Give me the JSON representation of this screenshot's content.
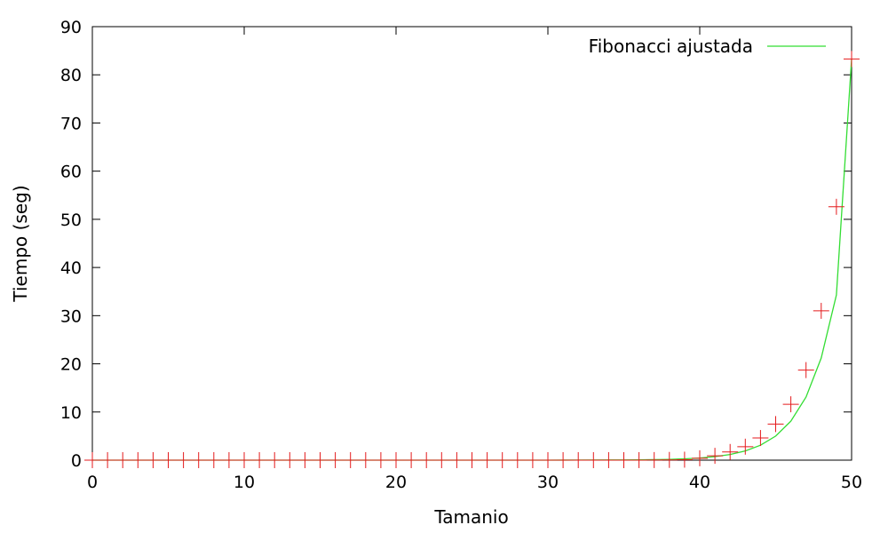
{
  "chart_data": {
    "type": "scatter",
    "title": "",
    "xlabel": "Tamanio",
    "ylabel": "Tiempo (seg)",
    "xlim": [
      0,
      50
    ],
    "ylim": [
      0,
      90
    ],
    "xticks": [
      0,
      10,
      20,
      30,
      40,
      50
    ],
    "yticks": [
      0,
      10,
      20,
      30,
      40,
      50,
      60,
      70,
      80,
      90
    ],
    "grid": false,
    "legend_position": "top-right",
    "series": [
      {
        "name": "",
        "kind": "points",
        "marker": "plus",
        "color": "#e41a1c",
        "x": [
          0,
          1,
          2,
          3,
          4,
          5,
          6,
          7,
          8,
          9,
          10,
          11,
          12,
          13,
          14,
          15,
          16,
          17,
          18,
          19,
          20,
          21,
          22,
          23,
          24,
          25,
          26,
          27,
          28,
          29,
          30,
          31,
          32,
          33,
          34,
          35,
          36,
          37,
          38,
          39,
          40,
          41,
          42,
          43,
          44,
          45,
          46,
          47,
          48,
          49,
          50
        ],
        "y": [
          0,
          0,
          0,
          0,
          0,
          0,
          0,
          0,
          0,
          0,
          0,
          0,
          0,
          0,
          0,
          0,
          0,
          0,
          0,
          0,
          0,
          0,
          0,
          0,
          0,
          0,
          0,
          0,
          0,
          0,
          0,
          0,
          0,
          0,
          0,
          0,
          0.01,
          0.02,
          0.05,
          0.1,
          0.4,
          0.9,
          1.7,
          2.8,
          4.6,
          7.5,
          11.6,
          18.7,
          31,
          52.6,
          83.3
        ]
      },
      {
        "name": "Fibonacci ajustada",
        "kind": "line",
        "color": "#33dd33",
        "x": [
          0,
          5,
          10,
          15,
          20,
          25,
          30,
          32,
          34,
          35,
          36,
          37,
          38,
          39,
          40,
          41,
          42,
          43,
          44,
          45,
          46,
          47,
          48,
          49,
          50
        ],
        "y": [
          0,
          0,
          0,
          0,
          0,
          0,
          0,
          0.01,
          0.03,
          0.04,
          0.07,
          0.11,
          0.17,
          0.28,
          0.45,
          0.73,
          1.18,
          1.91,
          3.09,
          5.0,
          8.1,
          13.1,
          21.2,
          34.3,
          83.3
        ]
      }
    ]
  }
}
